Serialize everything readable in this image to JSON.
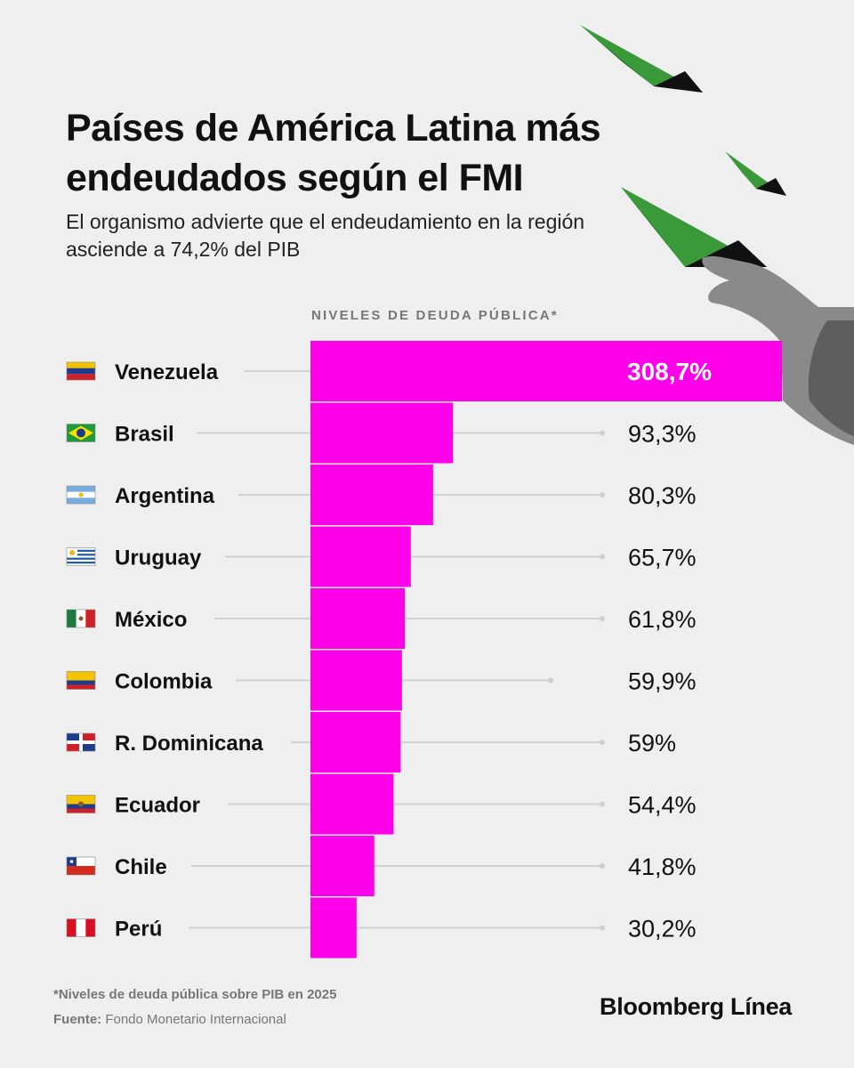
{
  "header": {
    "title": "Países de América Latina más endeudados según el FMI",
    "subtitle": "El organismo advierte que el endeudamiento en la región asciende a 74,2% del PIB"
  },
  "chart_data": {
    "type": "bar",
    "orientation": "horizontal",
    "title": "NIVELES DE DEUDA PÚBLICA*",
    "unit": "%",
    "categories": [
      "Venezuela",
      "Brasil",
      "Argentina",
      "Uruguay",
      "México",
      "Colombia",
      "R. Dominicana",
      "Ecuador",
      "Chile",
      "Perú"
    ],
    "values": [
      308.7,
      93.3,
      80.3,
      65.7,
      61.8,
      59.9,
      59,
      54.4,
      41.8,
      30.2
    ],
    "value_labels": [
      "308,7%",
      "93,3%",
      "80,3%",
      "65,7%",
      "61,8%",
      "59,9%",
      "59%",
      "54,4%",
      "41,8%",
      "30,2%"
    ],
    "flags": [
      "venezuela-flag-icon",
      "brazil-flag-icon",
      "argentina-flag-icon",
      "uruguay-flag-icon",
      "mexico-flag-icon",
      "colombia-flag-icon",
      "dominican-republic-flag-icon",
      "ecuador-flag-icon",
      "chile-flag-icon",
      "peru-flag-icon"
    ],
    "bar_color": "#ff00ea",
    "xlim": [
      0,
      308.7
    ],
    "grid": false,
    "legend": "none"
  },
  "footer": {
    "footnote": "*Niveles de deuda pública sobre PIB en 2025",
    "source_label": "Fuente:",
    "source": " Fondo Monetario Internacional",
    "brand": "Bloomberg Línea"
  }
}
